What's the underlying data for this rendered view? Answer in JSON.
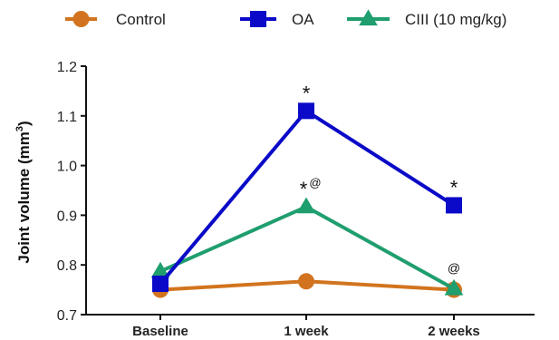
{
  "chart_data": {
    "type": "line",
    "title": "",
    "xlabel": "",
    "ylabel": "Joint volume (mm",
    "ylabel_sup": "3",
    "ylabel_close": ")",
    "categories": [
      "Baseline",
      "1 week",
      "2 weeks"
    ],
    "ylim": [
      0.7,
      1.2
    ],
    "yticks": [
      "0.7",
      "0.8",
      "0.9",
      "1.0",
      "1.1",
      "1.2"
    ],
    "grid": false,
    "legend_position": "top",
    "series": [
      {
        "name": "Control",
        "marker": "circle",
        "color": "#d2741f",
        "values": [
          0.75,
          0.767,
          0.75
        ]
      },
      {
        "name": "OA",
        "marker": "square",
        "color": "#0a0ac8",
        "values": [
          0.762,
          1.11,
          0.92
        ]
      },
      {
        "name": "CIII (10 mg/kg)",
        "marker": "triangle",
        "color": "#1f9e6e",
        "values": [
          0.787,
          0.917,
          0.752
        ]
      }
    ],
    "annotations": [
      {
        "text": "*",
        "category": 1,
        "value": 1.11,
        "series": "OA"
      },
      {
        "text": "*",
        "category": 2,
        "value": 0.92,
        "series": "OA"
      },
      {
        "text": "*",
        "sup": "@",
        "category": 1,
        "value": 0.917,
        "series": "CIII (10 mg/kg)"
      },
      {
        "text": "@",
        "category": 2,
        "value": 0.752,
        "series": "CIII (10 mg/kg)"
      }
    ]
  }
}
